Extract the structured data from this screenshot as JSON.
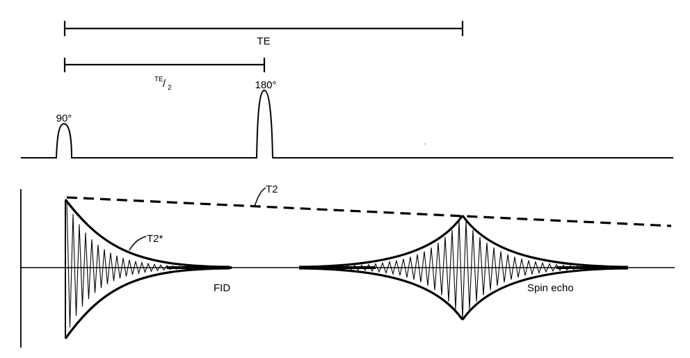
{
  "labels": {
    "te": "TE",
    "te_half_numerator": "TE",
    "te_half_slash": "/",
    "te_half_denominator": "2",
    "pulse_90": "90°",
    "pulse_180": "180°",
    "t2": "T2",
    "t2_star": "T2*",
    "fid": "FID",
    "spin_echo": "Spin echo"
  },
  "colors": {
    "ink": "#000000",
    "background": "#ffffff"
  }
}
